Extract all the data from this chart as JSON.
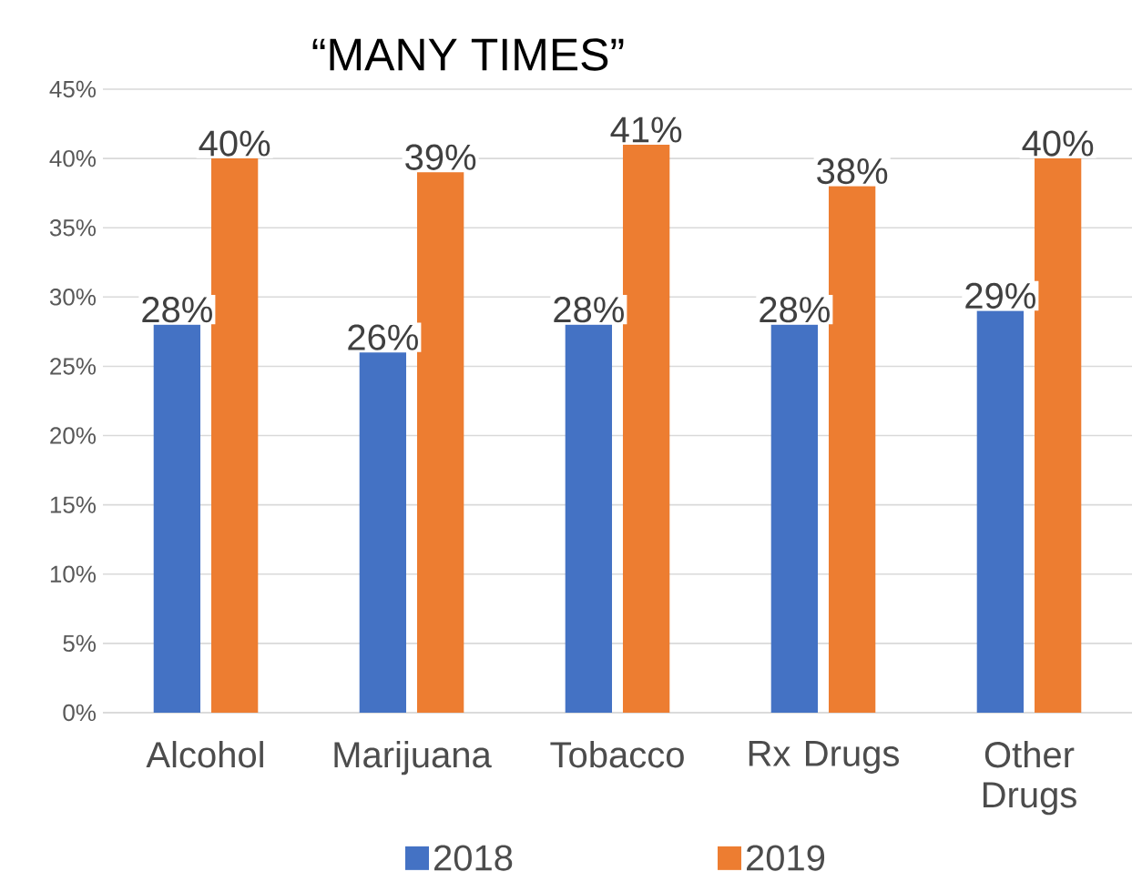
{
  "chart_data": {
    "type": "bar",
    "title": "“MANY TIMES”",
    "categories": [
      "Alcohol",
      "Marijuana",
      "Tobacco",
      "Rx Drugs",
      "Other Drugs"
    ],
    "series": [
      {
        "name": "2018",
        "color": "#4472c4",
        "values": [
          28,
          26,
          28,
          28,
          29
        ],
        "value_labels": [
          "28%",
          "26%",
          "28%",
          "28%",
          "29%"
        ]
      },
      {
        "name": "2019",
        "color": "#ed7d31",
        "values": [
          40,
          39,
          41,
          38,
          40
        ],
        "value_labels": [
          "40%",
          "39%",
          "41%",
          "38%",
          "40%"
        ]
      }
    ],
    "ylim": [
      0,
      45
    ],
    "yticks": [
      {
        "value": 0,
        "label": "0%"
      },
      {
        "value": 5,
        "label": "5%"
      },
      {
        "value": 10,
        "label": "10%"
      },
      {
        "value": 15,
        "label": "15%"
      },
      {
        "value": 20,
        "label": "20%"
      },
      {
        "value": 25,
        "label": "25%"
      },
      {
        "value": 30,
        "label": "30%"
      },
      {
        "value": 35,
        "label": "35%"
      },
      {
        "value": 40,
        "label": "40%"
      },
      {
        "value": 45,
        "label": "45%"
      }
    ],
    "grid": "y",
    "legend": "bottom"
  }
}
